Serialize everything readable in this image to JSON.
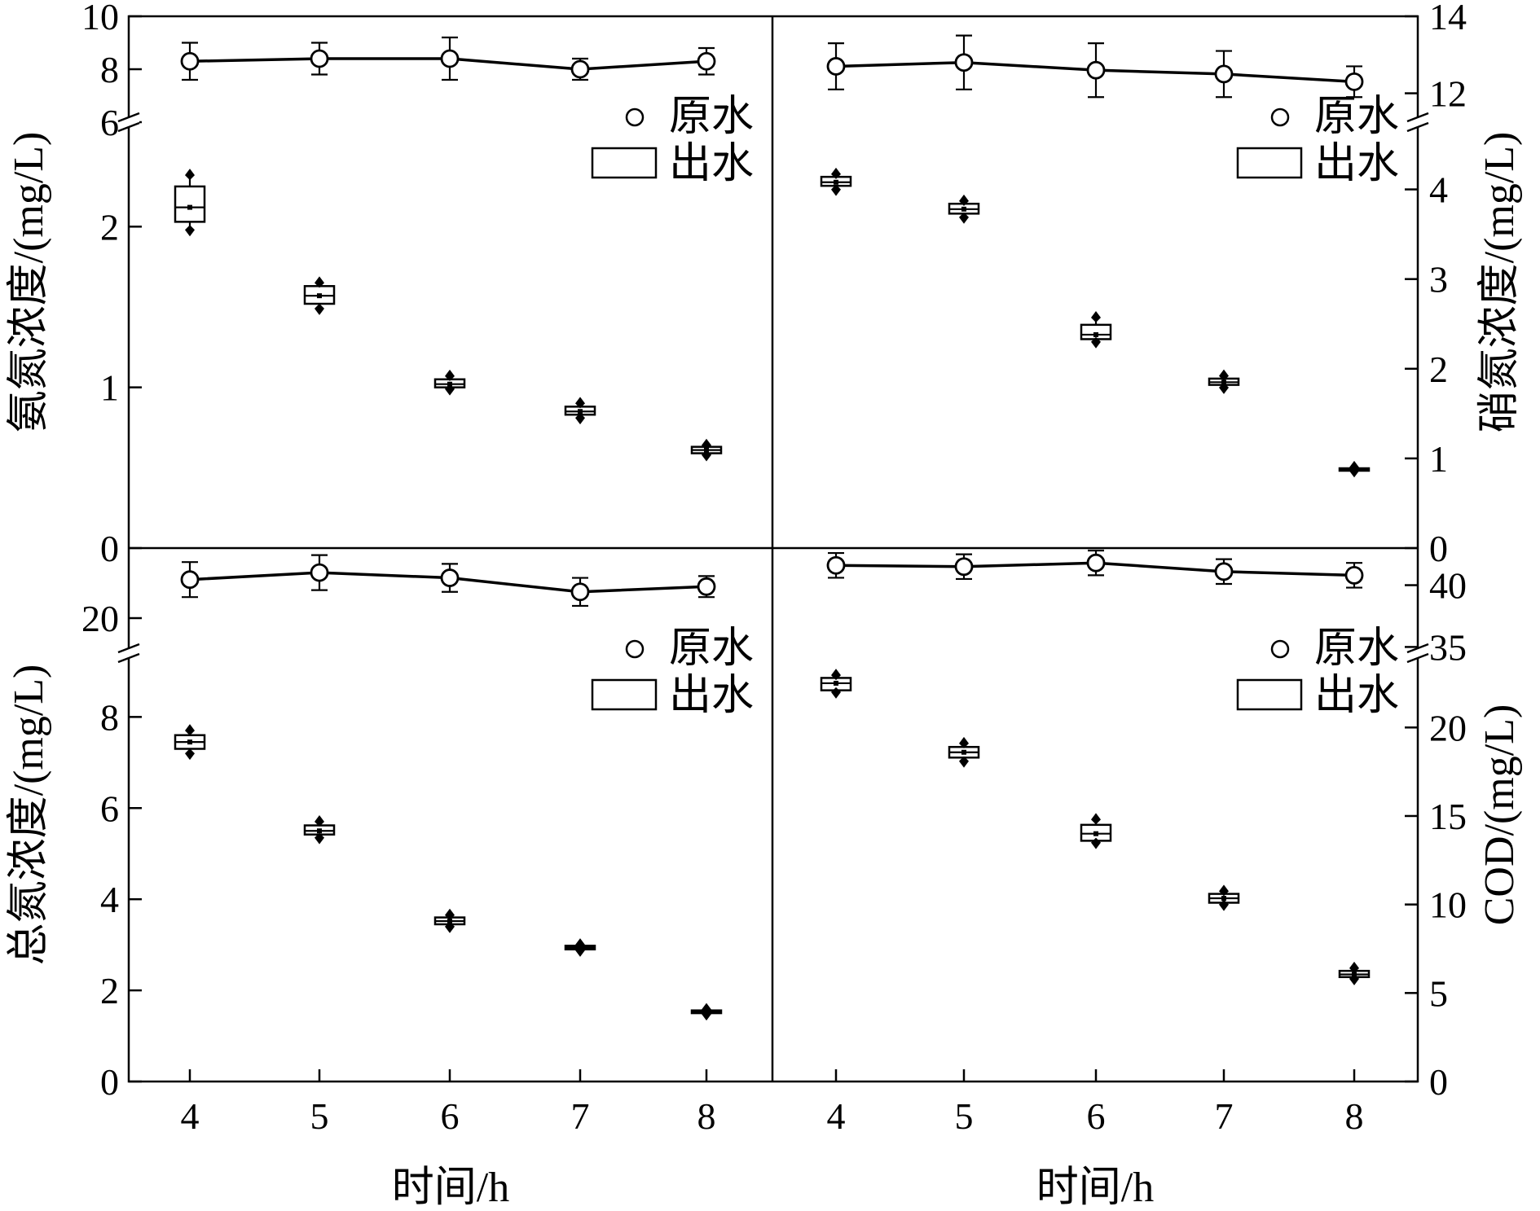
{
  "chart_data": [
    {
      "type": "box",
      "panel": "top-left",
      "x": [
        4,
        5,
        6,
        7,
        8
      ],
      "xlabel": "",
      "ylabel": "氨氮浓度/(mg/L)",
      "y_axis_side": "left",
      "broken_axis": true,
      "upper_ylim": [
        6,
        10
      ],
      "upper_ticks": [
        "6",
        "8",
        "10"
      ],
      "lower_ylim": [
        0,
        2.65
      ],
      "lower_ticks": [
        "0",
        "1",
        "2"
      ],
      "legend": {
        "position": "top-right",
        "raw_label": "原水",
        "effluent_label": "出水"
      },
      "raw": {
        "mean": [
          8.3,
          8.4,
          8.4,
          8.0,
          8.3
        ],
        "err": [
          0.7,
          0.6,
          0.8,
          0.4,
          0.5
        ]
      },
      "effluent": [
        {
          "min": 1.98,
          "q1": 2.03,
          "median": 2.12,
          "q3": 2.25,
          "max": 2.32
        },
        {
          "min": 1.49,
          "q1": 1.52,
          "median": 1.57,
          "q3": 1.63,
          "max": 1.65
        },
        {
          "min": 0.99,
          "q1": 1.0,
          "median": 1.02,
          "q3": 1.05,
          "max": 1.07
        },
        {
          "min": 0.81,
          "q1": 0.83,
          "median": 0.85,
          "q3": 0.88,
          "max": 0.9
        },
        {
          "min": 0.58,
          "q1": 0.59,
          "median": 0.61,
          "q3": 0.63,
          "max": 0.64
        }
      ]
    },
    {
      "type": "box",
      "panel": "top-right",
      "x": [
        4,
        5,
        6,
        7,
        8
      ],
      "xlabel": "",
      "ylabel": "硝氮浓度/(mg/L)",
      "y_axis_side": "right",
      "broken_axis": true,
      "upper_ylim": [
        11.25,
        14
      ],
      "upper_ticks": [
        "12",
        "14"
      ],
      "lower_ylim": [
        0,
        4.75
      ],
      "lower_ticks": [
        "0",
        "1",
        "2",
        "3",
        "4"
      ],
      "legend": {
        "position": "top-right",
        "raw_label": "原水",
        "effluent_label": "出水"
      },
      "raw": {
        "mean": [
          12.7,
          12.8,
          12.6,
          12.5,
          12.3
        ],
        "err": [
          0.6,
          0.7,
          0.7,
          0.6,
          0.4
        ]
      },
      "effluent": [
        {
          "min": 4.0,
          "q1": 4.04,
          "median": 4.08,
          "q3": 4.14,
          "max": 4.17
        },
        {
          "min": 3.69,
          "q1": 3.73,
          "median": 3.78,
          "q3": 3.84,
          "max": 3.87
        },
        {
          "min": 2.3,
          "q1": 2.33,
          "median": 2.38,
          "q3": 2.49,
          "max": 2.57
        },
        {
          "min": 1.79,
          "q1": 1.82,
          "median": 1.85,
          "q3": 1.89,
          "max": 1.92
        },
        {
          "min": 0.86,
          "q1": 0.87,
          "median": 0.88,
          "q3": 0.89,
          "max": 0.9
        }
      ]
    },
    {
      "type": "box",
      "panel": "bottom-left",
      "x": [
        4,
        5,
        6,
        7,
        8
      ],
      "xlabel": "时间/h",
      "ylabel": "总氮浓度/(mg/L)",
      "y_axis_side": "left",
      "broken_axis": true,
      "upper_ylim": [
        18,
        24
      ],
      "upper_ticks": [
        "20"
      ],
      "lower_ylim": [
        0,
        9.4
      ],
      "lower_ticks": [
        "0",
        "2",
        "4",
        "6",
        "8"
      ],
      "legend": {
        "position": "top-right",
        "raw_label": "原水",
        "effluent_label": "出水"
      },
      "raw": {
        "mean": [
          22.2,
          22.6,
          22.3,
          21.5,
          21.8
        ],
        "err": [
          1.0,
          1.0,
          0.8,
          0.8,
          0.6
        ]
      },
      "effluent": [
        {
          "min": 7.2,
          "q1": 7.3,
          "median": 7.45,
          "q3": 7.6,
          "max": 7.7
        },
        {
          "min": 5.35,
          "q1": 5.42,
          "median": 5.5,
          "q3": 5.62,
          "max": 5.7
        },
        {
          "min": 3.4,
          "q1": 3.45,
          "median": 3.52,
          "q3": 3.6,
          "max": 3.65
        },
        {
          "min": 2.88,
          "q1": 2.9,
          "median": 2.94,
          "q3": 2.98,
          "max": 3.0
        },
        {
          "min": 1.48,
          "q1": 1.5,
          "median": 1.53,
          "q3": 1.56,
          "max": 1.58
        }
      ]
    },
    {
      "type": "box",
      "panel": "bottom-right",
      "x": [
        4,
        5,
        6,
        7,
        8
      ],
      "xlabel": "时间/h",
      "ylabel": "COD/(mg/L)",
      "y_axis_side": "right",
      "broken_axis": true,
      "upper_ylim": [
        34.5,
        43
      ],
      "upper_ticks": [
        "35",
        "40"
      ],
      "lower_ylim": [
        0,
        24.2
      ],
      "lower_ticks": [
        "0",
        "5",
        "10",
        "15",
        "20"
      ],
      "legend": {
        "position": "top-right",
        "raw_label": "原水",
        "effluent_label": "出水"
      },
      "raw": {
        "mean": [
          41.6,
          41.5,
          41.8,
          41.1,
          40.8
        ],
        "err": [
          1.0,
          1.0,
          1.0,
          1.0,
          1.0
        ]
      },
      "effluent": [
        {
          "min": 22.0,
          "q1": 22.1,
          "median": 22.5,
          "q3": 22.8,
          "max": 22.95
        },
        {
          "min": 18.1,
          "q1": 18.3,
          "median": 18.6,
          "q3": 18.9,
          "max": 19.1
        },
        {
          "min": 13.5,
          "q1": 13.6,
          "median": 14.0,
          "q3": 14.5,
          "max": 14.8
        },
        {
          "min": 10.0,
          "q1": 10.1,
          "median": 10.35,
          "q3": 10.6,
          "max": 10.75
        },
        {
          "min": 5.8,
          "q1": 5.9,
          "median": 6.05,
          "q3": 6.25,
          "max": 6.4
        }
      ]
    }
  ],
  "x_ticks": [
    "4",
    "5",
    "6",
    "7",
    "8"
  ]
}
